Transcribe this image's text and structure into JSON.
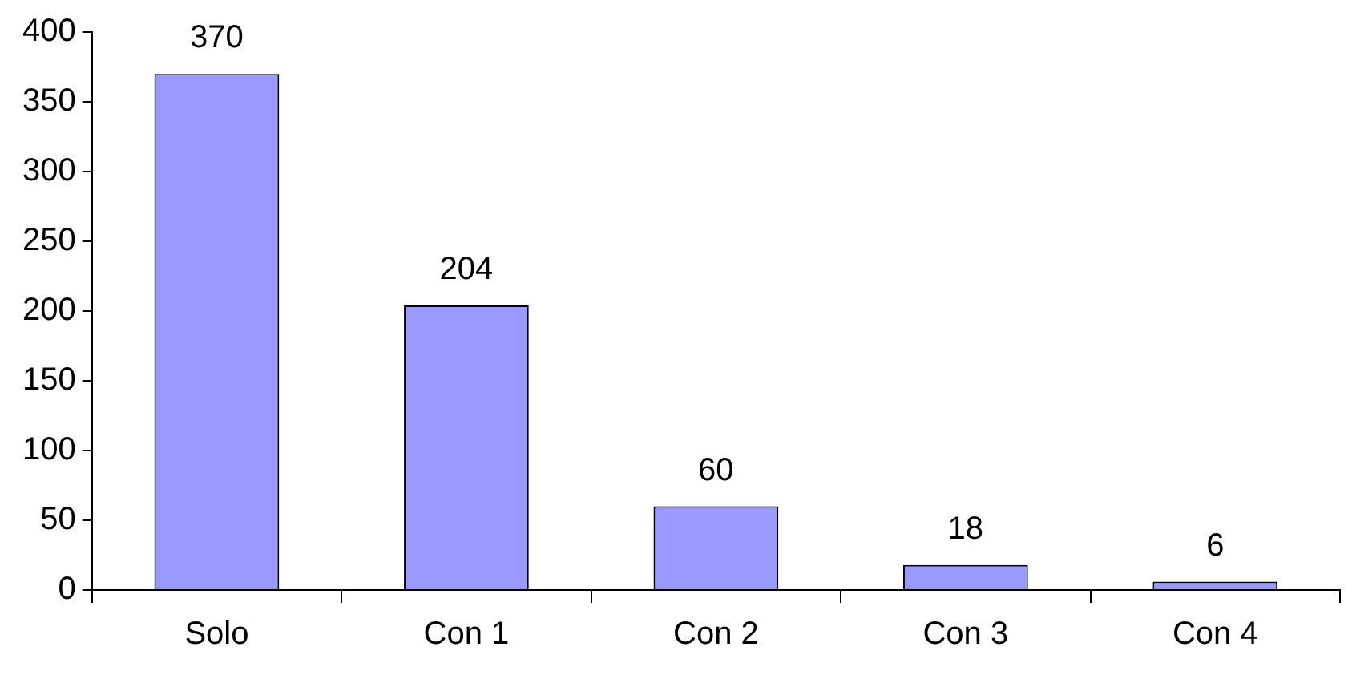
{
  "chart_data": {
    "type": "bar",
    "categories": [
      "Solo",
      "Con 1",
      "Con 2",
      "Con 3",
      "Con 4"
    ],
    "values": [
      370,
      204,
      60,
      18,
      6
    ],
    "color": "#9999ff",
    "ylim": [
      0,
      400
    ],
    "yticks": [
      0,
      50,
      100,
      150,
      200,
      250,
      300,
      350,
      400
    ],
    "grid": false,
    "data_labels": true
  }
}
